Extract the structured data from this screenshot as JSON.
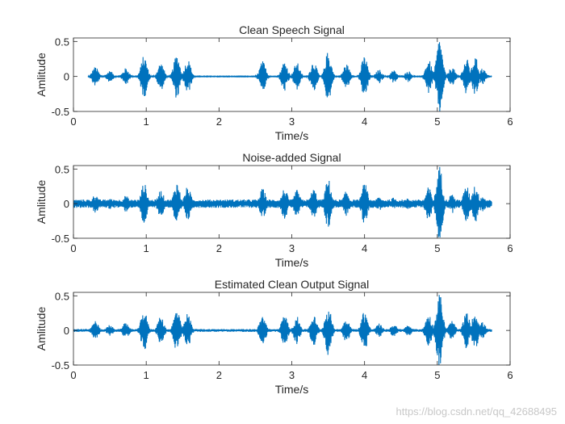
{
  "watermark": "https://blog.csdn.net/qq_42688495",
  "colors": {
    "signal": "#0072bd",
    "axis": "#262626"
  },
  "chart_data": [
    {
      "type": "line",
      "title": "Clean Speech Signal",
      "xlabel": "Time/s",
      "ylabel": "Amlitude",
      "xlim": [
        0,
        6
      ],
      "ylim": [
        -0.5,
        0.55
      ],
      "xticks": [
        0,
        1,
        2,
        3,
        4,
        5,
        6
      ],
      "yticks": [
        -0.5,
        0,
        0.5
      ],
      "xtick_labels": [
        "0",
        "1",
        "2",
        "3",
        "4",
        "5",
        "6"
      ],
      "ytick_labels": [
        "-0.5",
        "0",
        "0.5"
      ],
      "grid": false,
      "signal_extent_s": [
        0.2,
        5.75
      ],
      "noise_floor": 0.004,
      "envelope_peaks": [
        {
          "t": 0.3,
          "amp": 0.14
        },
        {
          "t": 0.5,
          "amp": 0.08
        },
        {
          "t": 0.72,
          "amp": 0.12
        },
        {
          "t": 0.97,
          "amp": 0.3
        },
        {
          "t": 1.2,
          "amp": 0.2
        },
        {
          "t": 1.42,
          "amp": 0.32
        },
        {
          "t": 1.57,
          "amp": 0.25
        },
        {
          "t": 2.6,
          "amp": 0.22
        },
        {
          "t": 2.9,
          "amp": 0.22
        },
        {
          "t": 3.07,
          "amp": 0.2
        },
        {
          "t": 3.3,
          "amp": 0.22
        },
        {
          "t": 3.5,
          "amp": 0.36
        },
        {
          "t": 3.75,
          "amp": 0.18
        },
        {
          "t": 4.0,
          "amp": 0.3
        },
        {
          "t": 4.2,
          "amp": 0.1
        },
        {
          "t": 4.4,
          "amp": 0.09
        },
        {
          "t": 4.6,
          "amp": 0.08
        },
        {
          "t": 4.88,
          "amp": 0.24
        },
        {
          "t": 5.03,
          "amp": 0.55
        },
        {
          "t": 5.2,
          "amp": 0.14
        },
        {
          "t": 5.4,
          "amp": 0.26
        },
        {
          "t": 5.52,
          "amp": 0.28
        },
        {
          "t": 5.62,
          "amp": 0.12
        }
      ]
    },
    {
      "type": "line",
      "title": "Noise-added Signal",
      "xlabel": "Time/s",
      "ylabel": "Amlitude",
      "xlim": [
        0,
        6
      ],
      "ylim": [
        -0.5,
        0.55
      ],
      "xticks": [
        0,
        1,
        2,
        3,
        4,
        5,
        6
      ],
      "yticks": [
        -0.5,
        0,
        0.5
      ],
      "xtick_labels": [
        "0",
        "1",
        "2",
        "3",
        "4",
        "5",
        "6"
      ],
      "ytick_labels": [
        "-0.5",
        "0",
        "0.5"
      ],
      "grid": false,
      "signal_extent_s": [
        0,
        5.75
      ],
      "noise_floor": 0.06,
      "envelope_peaks": [
        {
          "t": 0.3,
          "amp": 0.14
        },
        {
          "t": 0.5,
          "amp": 0.08
        },
        {
          "t": 0.72,
          "amp": 0.12
        },
        {
          "t": 0.97,
          "amp": 0.3
        },
        {
          "t": 1.2,
          "amp": 0.2
        },
        {
          "t": 1.42,
          "amp": 0.32
        },
        {
          "t": 1.57,
          "amp": 0.25
        },
        {
          "t": 2.6,
          "amp": 0.22
        },
        {
          "t": 2.9,
          "amp": 0.22
        },
        {
          "t": 3.07,
          "amp": 0.2
        },
        {
          "t": 3.3,
          "amp": 0.22
        },
        {
          "t": 3.5,
          "amp": 0.36
        },
        {
          "t": 3.75,
          "amp": 0.18
        },
        {
          "t": 4.0,
          "amp": 0.3
        },
        {
          "t": 4.2,
          "amp": 0.1
        },
        {
          "t": 4.4,
          "amp": 0.09
        },
        {
          "t": 4.6,
          "amp": 0.08
        },
        {
          "t": 4.88,
          "amp": 0.24
        },
        {
          "t": 5.03,
          "amp": 0.55
        },
        {
          "t": 5.2,
          "amp": 0.14
        },
        {
          "t": 5.4,
          "amp": 0.26
        },
        {
          "t": 5.52,
          "amp": 0.28
        },
        {
          "t": 5.62,
          "amp": 0.12
        }
      ]
    },
    {
      "type": "line",
      "title": "Estimated Clean Output Signal",
      "xlabel": "Time/s",
      "ylabel": "Amlitude",
      "xlim": [
        0,
        6
      ],
      "ylim": [
        -0.5,
        0.55
      ],
      "xticks": [
        0,
        1,
        2,
        3,
        4,
        5,
        6
      ],
      "yticks": [
        -0.5,
        0,
        0.5
      ],
      "xtick_labels": [
        "0",
        "1",
        "2",
        "3",
        "4",
        "5",
        "6"
      ],
      "ytick_labels": [
        "-0.5",
        "0",
        "0.5"
      ],
      "grid": false,
      "signal_extent_s": [
        0,
        5.75
      ],
      "noise_floor": 0.02,
      "envelope_peaks": [
        {
          "t": 0.3,
          "amp": 0.14
        },
        {
          "t": 0.5,
          "amp": 0.08
        },
        {
          "t": 0.72,
          "amp": 0.12
        },
        {
          "t": 0.97,
          "amp": 0.3
        },
        {
          "t": 1.2,
          "amp": 0.2
        },
        {
          "t": 1.42,
          "amp": 0.32
        },
        {
          "t": 1.57,
          "amp": 0.25
        },
        {
          "t": 2.6,
          "amp": 0.22
        },
        {
          "t": 2.9,
          "amp": 0.22
        },
        {
          "t": 3.07,
          "amp": 0.2
        },
        {
          "t": 3.3,
          "amp": 0.22
        },
        {
          "t": 3.5,
          "amp": 0.36
        },
        {
          "t": 3.75,
          "amp": 0.18
        },
        {
          "t": 4.0,
          "amp": 0.3
        },
        {
          "t": 4.2,
          "amp": 0.1
        },
        {
          "t": 4.4,
          "amp": 0.09
        },
        {
          "t": 4.6,
          "amp": 0.08
        },
        {
          "t": 4.88,
          "amp": 0.24
        },
        {
          "t": 5.03,
          "amp": 0.55
        },
        {
          "t": 5.2,
          "amp": 0.14
        },
        {
          "t": 5.4,
          "amp": 0.26
        },
        {
          "t": 5.52,
          "amp": 0.28
        },
        {
          "t": 5.62,
          "amp": 0.12
        }
      ]
    }
  ]
}
